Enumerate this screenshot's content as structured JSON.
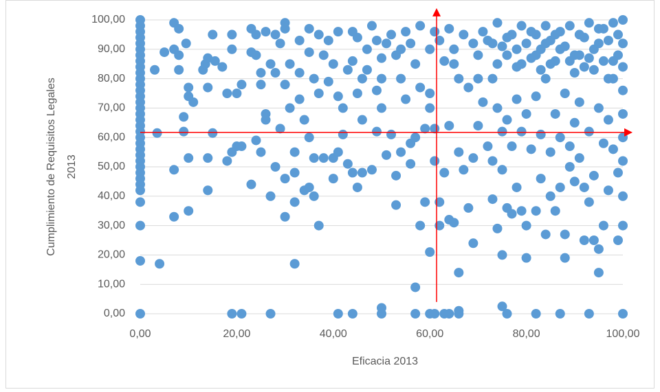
{
  "chart_data": {
    "type": "scatter",
    "xlabel": "Eficacia 2013",
    "ylabel": [
      "Cumplimiento de Requisitos Legales",
      "2013"
    ],
    "color": "#5b9bd5",
    "grid": "y",
    "xlim": [
      0,
      100
    ],
    "ylim": [
      0,
      100
    ],
    "xticks": [
      {
        "value": 0,
        "label": "0,00"
      },
      {
        "value": 20,
        "label": "20,00"
      },
      {
        "value": 40,
        "label": "40,00"
      },
      {
        "value": 60,
        "label": "60,00"
      },
      {
        "value": 80,
        "label": "80,00"
      },
      {
        "value": 100,
        "label": "100,00"
      }
    ],
    "yticks": [
      {
        "value": 0,
        "label": "0,00"
      },
      {
        "value": 10,
        "label": "10,00"
      },
      {
        "value": 20,
        "label": "20,00"
      },
      {
        "value": 30,
        "label": "30,00"
      },
      {
        "value": 40,
        "label": "40,00"
      },
      {
        "value": 50,
        "label": "50,00"
      },
      {
        "value": 60,
        "label": "60,00"
      },
      {
        "value": 70,
        "label": "70,00"
      },
      {
        "value": 80,
        "label": "80,00"
      },
      {
        "value": 90,
        "label": "90,00"
      },
      {
        "value": 100,
        "label": "100,00"
      }
    ],
    "reference_lines": [
      {
        "x": 61.4,
        "y": [
          4,
          104
        ],
        "color": "#ff0000"
      },
      {
        "y": 61.7,
        "x": [
          0,
          102
        ],
        "color": "#ff0000"
      }
    ],
    "x": [
      0,
      0,
      0,
      0,
      0,
      0,
      0,
      0,
      0,
      0,
      0,
      0,
      0,
      0,
      0,
      0,
      0,
      0,
      0,
      0,
      0,
      0,
      0,
      0,
      0,
      0,
      0,
      0,
      0,
      0,
      0,
      0,
      0,
      0,
      19,
      21,
      27,
      41,
      44,
      50,
      57,
      60,
      61,
      63,
      64,
      66,
      76,
      82,
      87,
      93,
      100,
      50,
      66,
      75,
      3,
      3.5,
      4,
      5,
      7,
      7,
      7,
      7,
      8,
      8,
      8,
      9,
      9,
      9.5,
      10,
      10,
      10,
      10,
      11,
      13,
      13.5,
      14,
      14,
      14,
      14,
      15,
      15,
      15.5,
      17,
      18,
      18,
      19,
      19,
      19,
      20,
      20,
      21,
      21,
      23,
      23,
      23,
      24,
      24,
      24,
      25,
      25,
      25,
      26,
      26,
      26,
      27,
      27,
      28,
      28,
      28,
      29,
      29,
      30,
      30,
      30,
      30,
      30,
      31,
      31,
      32,
      32,
      32,
      32,
      33,
      33,
      33,
      34,
      34,
      35,
      35,
      35,
      35,
      36,
      36,
      36,
      37,
      37,
      37,
      38,
      38,
      39,
      39,
      40,
      40,
      40,
      41,
      41,
      41,
      42,
      42,
      43,
      43,
      44,
      44,
      44,
      45,
      45,
      45,
      46,
      46,
      46,
      47,
      47,
      48,
      48,
      49,
      49,
      49,
      50,
      50,
      50,
      51,
      51,
      52,
      52,
      53,
      53,
      53,
      54,
      54,
      54,
      55,
      55,
      56,
      56,
      56,
      57,
      57,
      58,
      58,
      58,
      59,
      59,
      60,
      60,
      60,
      57,
      61,
      61,
      61,
      62,
      62,
      62,
      63,
      63,
      64,
      64,
      64,
      65,
      65,
      66,
      66,
      66,
      67,
      67,
      68,
      68,
      69,
      69,
      69,
      70,
      70,
      71,
      71,
      72,
      72,
      73,
      73,
      73,
      74,
      74,
      74,
      74,
      75,
      75,
      75,
      75,
      76,
      76,
      76,
      77,
      77,
      77,
      78,
      78,
      78,
      79,
      79,
      79,
      80,
      80,
      80,
      80,
      81,
      81,
      82,
      82,
      82,
      83,
      83,
      83,
      84,
      84,
      84,
      85,
      85,
      85,
      86,
      86,
      86,
      87,
      87,
      87,
      88,
      88,
      88,
      88,
      89,
      89,
      89,
      90,
      90,
      90,
      91,
      91,
      91,
      92,
      92,
      92,
      93,
      93,
      93,
      94,
      94,
      94,
      95,
      95,
      95,
      95,
      96,
      96,
      96,
      97,
      97,
      97,
      98,
      98,
      98,
      99,
      99,
      99,
      99,
      100,
      100,
      100,
      100,
      100,
      100,
      100,
      100,
      100,
      82,
      85,
      90,
      93,
      76,
      78,
      81,
      84,
      86,
      89,
      92,
      94,
      96,
      97,
      73,
      79,
      83,
      87,
      91,
      95,
      98,
      70,
      65,
      60
    ],
    "values": [
      100,
      98,
      96,
      94,
      92,
      90,
      88,
      86,
      84,
      82,
      80,
      78,
      76,
      74,
      72,
      70,
      68,
      66,
      64,
      62,
      60,
      58,
      56,
      54,
      52,
      50,
      48,
      46,
      44,
      42,
      38,
      30,
      18,
      0,
      0,
      0,
      0,
      0,
      0,
      0,
      0,
      0,
      0,
      0,
      0,
      0,
      0,
      0,
      0,
      0,
      0,
      2,
      1,
      2.5,
      83,
      61.5,
      17,
      89,
      99,
      90,
      49,
      33,
      97,
      88,
      83,
      62,
      67,
      92,
      77,
      74,
      53,
      35,
      72,
      83,
      85,
      87,
      77,
      53,
      42,
      61.5,
      95,
      86,
      84,
      75,
      52,
      90,
      55,
      95,
      57,
      75,
      78,
      57,
      97,
      89,
      44,
      95,
      88,
      59,
      82,
      55,
      78,
      96,
      68,
      66,
      85,
      40,
      95,
      82,
      50,
      63,
      92,
      99,
      97,
      78,
      46,
      33,
      70,
      85,
      38,
      55,
      48,
      17,
      93,
      82,
      73,
      66,
      42,
      97,
      89,
      60,
      43,
      80,
      40,
      53,
      95,
      75,
      30,
      88,
      53,
      93,
      79,
      85,
      53,
      46,
      96,
      74,
      55,
      61,
      70,
      83,
      51,
      96,
      86,
      48,
      94,
      75,
      43,
      80,
      66,
      48,
      90,
      83,
      98,
      49,
      93,
      62,
      76,
      87,
      80,
      70,
      92,
      54,
      95,
      61,
      88,
      37,
      47,
      90,
      80,
      55,
      96,
      73,
      92,
      58,
      51,
      85,
      60,
      98,
      77,
      30,
      63,
      38,
      70,
      75,
      21,
      9,
      96,
      52,
      63,
      93,
      38,
      30,
      86,
      48,
      97,
      64,
      32,
      90,
      31,
      80,
      55,
      14,
      95,
      49,
      77,
      36,
      92,
      53,
      24,
      88,
      64,
      96,
      72,
      93,
      57,
      80,
      52,
      39,
      99,
      85,
      70,
      29,
      91,
      62,
      49,
      20,
      88,
      66,
      36,
      95,
      57,
      34,
      84,
      73,
      43,
      98,
      62,
      35,
      92,
      68,
      30,
      19,
      87,
      56,
      95,
      74,
      35,
      90,
      61,
      46,
      98,
      80,
      27,
      93,
      55,
      40,
      86,
      68,
      35,
      96,
      60,
      43,
      91,
      75,
      27,
      19,
      98,
      57,
      50,
      88,
      65,
      45,
      95,
      72,
      53,
      84,
      25,
      43,
      99,
      62,
      38,
      90,
      47,
      25,
      97,
      70,
      22,
      14,
      86,
      58,
      30,
      93,
      66,
      42,
      99,
      80,
      56,
      95,
      88,
      48,
      25,
      100,
      92,
      84,
      76,
      68,
      60,
      52,
      40,
      30,
      88,
      85,
      82,
      87,
      94,
      90,
      96,
      92,
      95,
      86,
      94,
      83,
      97,
      80,
      92,
      85,
      83,
      90,
      88,
      92,
      86,
      80,
      85,
      90
    ]
  }
}
